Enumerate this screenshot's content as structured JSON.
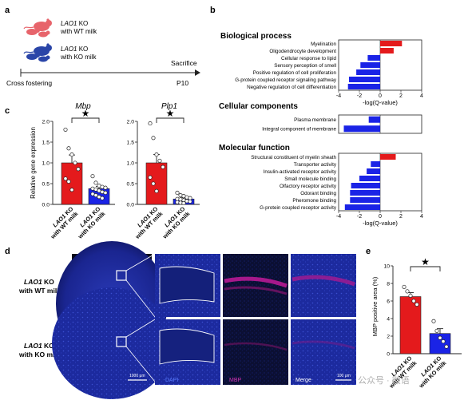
{
  "panels": {
    "a": {
      "label": "a",
      "group_wt": {
        "gene": "LAO1",
        "line1_suffix": " KO",
        "line2": "with WT milk"
      },
      "group_ko": {
        "gene": "LAO1",
        "line1_suffix": " KO",
        "line2": "with KO milk"
      },
      "start_label": "Cross fostering",
      "event_label": "Sacrifice",
      "end_label": "P10"
    },
    "b": {
      "label": "b",
      "xlabel": "-log(Q-value)",
      "ticks": [
        "-4",
        "-2",
        "0",
        "2",
        "4"
      ],
      "sections": [
        {
          "title": "Biological process",
          "terms": [
            "Myelination",
            "Oligodendrocyte development",
            "Cellular response to lipid",
            "Sensory perception of smell",
            "Positive regulation of cell proliferation",
            "G-protein coupled receptor signaling pathway",
            "Negative regulation of cell differentiation"
          ]
        },
        {
          "title": "Cellular components",
          "terms": [
            "Plasma membrane",
            "Integral component of membrane"
          ]
        },
        {
          "title": "Molecular function",
          "terms": [
            "Structural constituent of myelin sheath",
            "Transporter activity",
            "Insulin-activated receptor activity",
            "Small molecule binding",
            "Olfactory receptor activity",
            "Odorant binding",
            "Pheromone binding",
            "G-protein coupled receptor activity"
          ]
        }
      ]
    },
    "c": {
      "label": "c",
      "ylabel": "Relative gene expression",
      "group_labels": [
        {
          "gene": "LAO1",
          "suffix": " KO",
          "line2": "with WT milk"
        },
        {
          "gene": "LAO1",
          "suffix": " KO",
          "line2": "with KO milk"
        }
      ],
      "plots": [
        {
          "title": "Mbp",
          "yticks": [
            "0.0",
            "0.5",
            "1.0",
            "1.5",
            "2.0"
          ]
        },
        {
          "title": "Plp1",
          "yticks": [
            "0.0",
            "0.5",
            "1.0",
            "1.5",
            "2.0"
          ]
        }
      ],
      "significance": "★"
    },
    "d": {
      "label": "d",
      "row_labels": [
        {
          "gene": "LAO1",
          "suffix": " KO",
          "line2": "with WT milk"
        },
        {
          "gene": "LAO1",
          "suffix": " KO",
          "line2": "with KO milk"
        }
      ],
      "channel_labels": [
        "DAPI",
        "MBP",
        "Merge"
      ],
      "scale_large": "1000 μm",
      "scale_small": "100 μm"
    },
    "e": {
      "label": "e",
      "ylabel": "MBP positive area (%)",
      "yticks": [
        "0",
        "2",
        "4",
        "6",
        "8",
        "10"
      ],
      "group_labels": [
        {
          "gene": "LAO1",
          "suffix": " KO",
          "line2": "with WT milk"
        },
        {
          "gene": "LAO1",
          "suffix": " KO",
          "line2": "with KO milk"
        }
      ],
      "significance": "★"
    }
  },
  "watermark": "公众号 · 微语",
  "colors": {
    "red": "#e41a1c",
    "blue": "#1a23e6",
    "dapi": "#1b2a9c",
    "mbp": "#b0188f"
  },
  "chart_data": [
    {
      "panel": "b",
      "type": "bar",
      "orientation": "horizontal",
      "title": "",
      "xlabel": "-log(Q-value)",
      "xlim": [
        -4,
        4
      ],
      "categories": [
        "Myelination",
        "Oligodendrocyte development",
        "Cellular response to lipid",
        "Sensory perception of smell",
        "Positive regulation of cell proliferation",
        "G-protein coupled receptor signaling pathway",
        "Negative regulation of cell differentiation",
        "Plasma membrane",
        "Integral component of membrane",
        "Structural constituent of myelin sheath",
        "Transporter activity",
        "Insulin-activated receptor activity",
        "Small molecule binding",
        "Olfactory receptor activity",
        "Odorant binding",
        "Pheromone binding",
        "G-protein coupled receptor activity"
      ],
      "values": [
        2.1,
        1.3,
        -1.2,
        -1.9,
        -2.3,
        -3.0,
        -3.1,
        -1.1,
        -3.5,
        1.5,
        -0.9,
        -1.3,
        -2.0,
        -2.8,
        -2.9,
        -2.9,
        -3.4
      ]
    },
    {
      "panel": "c",
      "type": "bar",
      "title": "Mbp",
      "ylabel": "Relative gene expression",
      "ylim": [
        0,
        2.0
      ],
      "categories": [
        "LAO1 KO with WT milk",
        "LAO1 KO with KO milk"
      ],
      "values": [
        1.0,
        0.38
      ],
      "errors": [
        0.19,
        0.05
      ],
      "points": [
        [
          1.8,
          1.35,
          1.2,
          1.0,
          0.85,
          0.62,
          0.55,
          0.35
        ],
        [
          0.68,
          0.52,
          0.45,
          0.42,
          0.4,
          0.38,
          0.36,
          0.33,
          0.3,
          0.28,
          0.25,
          0.22,
          0.18,
          0.15
        ]
      ]
    },
    {
      "panel": "c",
      "type": "bar",
      "title": "Plp1",
      "ylabel": "Relative gene expression",
      "ylim": [
        0,
        2.0
      ],
      "categories": [
        "LAO1 KO with WT milk",
        "LAO1 KO with KO milk"
      ],
      "values": [
        1.0,
        0.13
      ],
      "errors": [
        0.2,
        0.03
      ],
      "points": [
        [
          1.95,
          1.6,
          1.2,
          1.05,
          0.9,
          0.65,
          0.5,
          0.32
        ],
        [
          0.28,
          0.22,
          0.2,
          0.17,
          0.15,
          0.13,
          0.12,
          0.1,
          0.08,
          0.07,
          0.05,
          0.04,
          0.03
        ]
      ]
    },
    {
      "panel": "e",
      "type": "bar",
      "title": "",
      "ylabel": "MBP positive area (%)",
      "ylim": [
        0,
        10
      ],
      "categories": [
        "LAO1 KO with WT milk",
        "LAO1 KO with KO milk"
      ],
      "values": [
        6.5,
        2.3
      ],
      "errors": [
        0.45,
        0.55
      ],
      "points": [
        [
          7.6,
          7.1,
          6.6,
          6.0,
          5.6
        ],
        [
          3.7,
          2.6,
          1.8,
          1.4,
          0.8
        ]
      ]
    }
  ]
}
